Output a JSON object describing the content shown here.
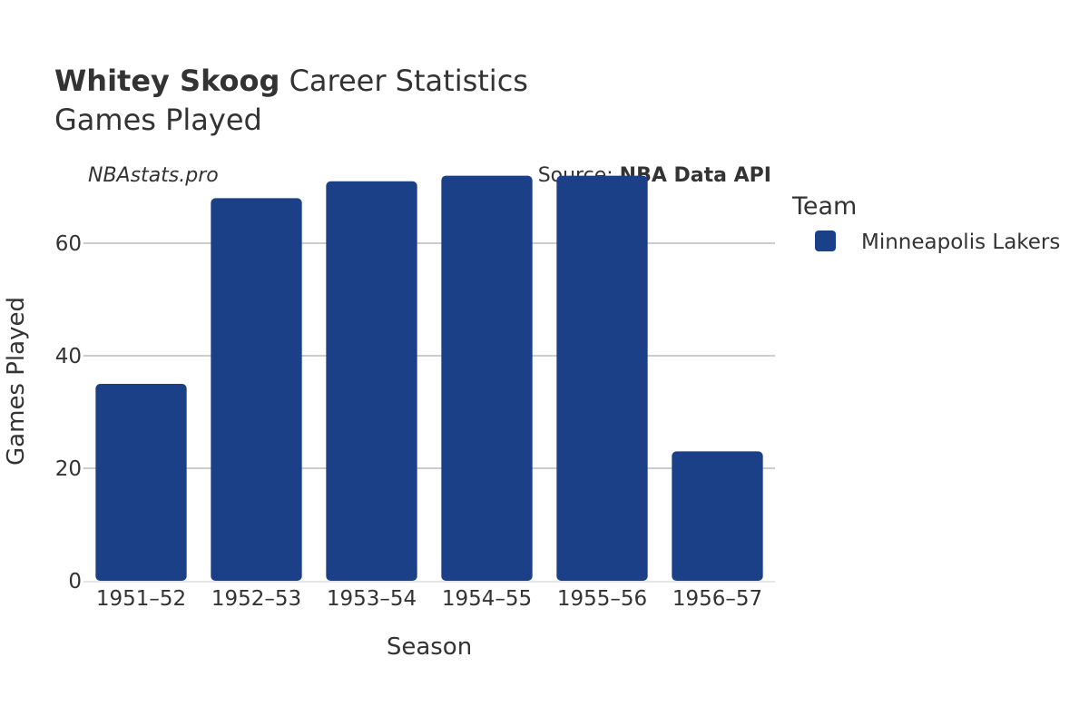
{
  "chart_data": {
    "type": "bar",
    "title_name": "Whitey Skoog",
    "title_rest": " Career Statistics",
    "subtitle": "Games Played",
    "watermark": "NBAstats.pro",
    "source_prefix": "Source: ",
    "source_name": "NBA Data API",
    "xlabel": "Season",
    "ylabel": "Games Played",
    "categories": [
      "1951–52",
      "1952–53",
      "1953–54",
      "1954–55",
      "1955–56",
      "1956–57"
    ],
    "series": [
      {
        "name": "Minneapolis Lakers",
        "values": [
          35,
          68,
          71,
          72,
          72,
          23
        ]
      }
    ],
    "ylim": [
      0,
      75
    ],
    "yticks": [
      0,
      20,
      40,
      60
    ],
    "grid": true,
    "legend_title": "Team",
    "legend_position": "right",
    "colors": {
      "bar": "#1c4088",
      "grid": "#999999",
      "text": "#333333"
    }
  }
}
